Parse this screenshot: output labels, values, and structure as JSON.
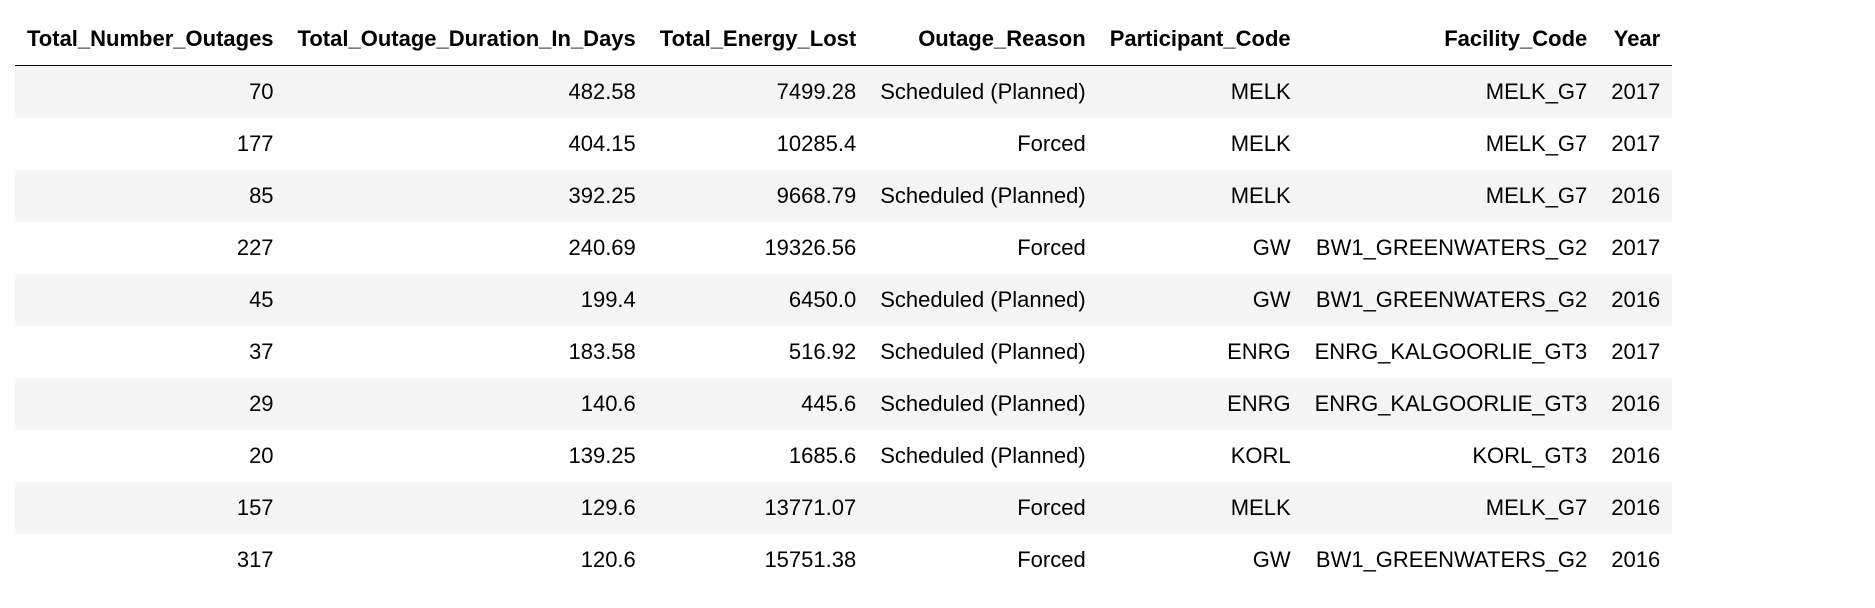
{
  "table": {
    "columns": [
      "Total_Number_Outages",
      "Total_Outage_Duration_In_Days",
      "Total_Energy_Lost",
      "Outage_Reason",
      "Participant_Code",
      "Facility_Code",
      "Year"
    ],
    "rows": [
      [
        "70",
        "482.58",
        "7499.28",
        "Scheduled (Planned)",
        "MELK",
        "MELK_G7",
        "2017"
      ],
      [
        "177",
        "404.15",
        "10285.4",
        "Forced",
        "MELK",
        "MELK_G7",
        "2017"
      ],
      [
        "85",
        "392.25",
        "9668.79",
        "Scheduled (Planned)",
        "MELK",
        "MELK_G7",
        "2016"
      ],
      [
        "227",
        "240.69",
        "19326.56",
        "Forced",
        "GW",
        "BW1_GREENWATERS_G2",
        "2017"
      ],
      [
        "45",
        "199.4",
        "6450.0",
        "Scheduled (Planned)",
        "GW",
        "BW1_GREENWATERS_G2",
        "2016"
      ],
      [
        "37",
        "183.58",
        "516.92",
        "Scheduled (Planned)",
        "ENRG",
        "ENRG_KALGOORLIE_GT3",
        "2017"
      ],
      [
        "29",
        "140.6",
        "445.6",
        "Scheduled (Planned)",
        "ENRG",
        "ENRG_KALGOORLIE_GT3",
        "2016"
      ],
      [
        "20",
        "139.25",
        "1685.6",
        "Scheduled (Planned)",
        "KORL",
        "KORL_GT3",
        "2016"
      ],
      [
        "157",
        "129.6",
        "13771.07",
        "Forced",
        "MELK",
        "MELK_G7",
        "2016"
      ],
      [
        "317",
        "120.6",
        "15751.38",
        "Forced",
        "GW",
        "BW1_GREENWATERS_G2",
        "2016"
      ]
    ]
  },
  "colors": {
    "stripe": "#f5f5f5",
    "background": "#ffffff",
    "text": "#000000"
  }
}
